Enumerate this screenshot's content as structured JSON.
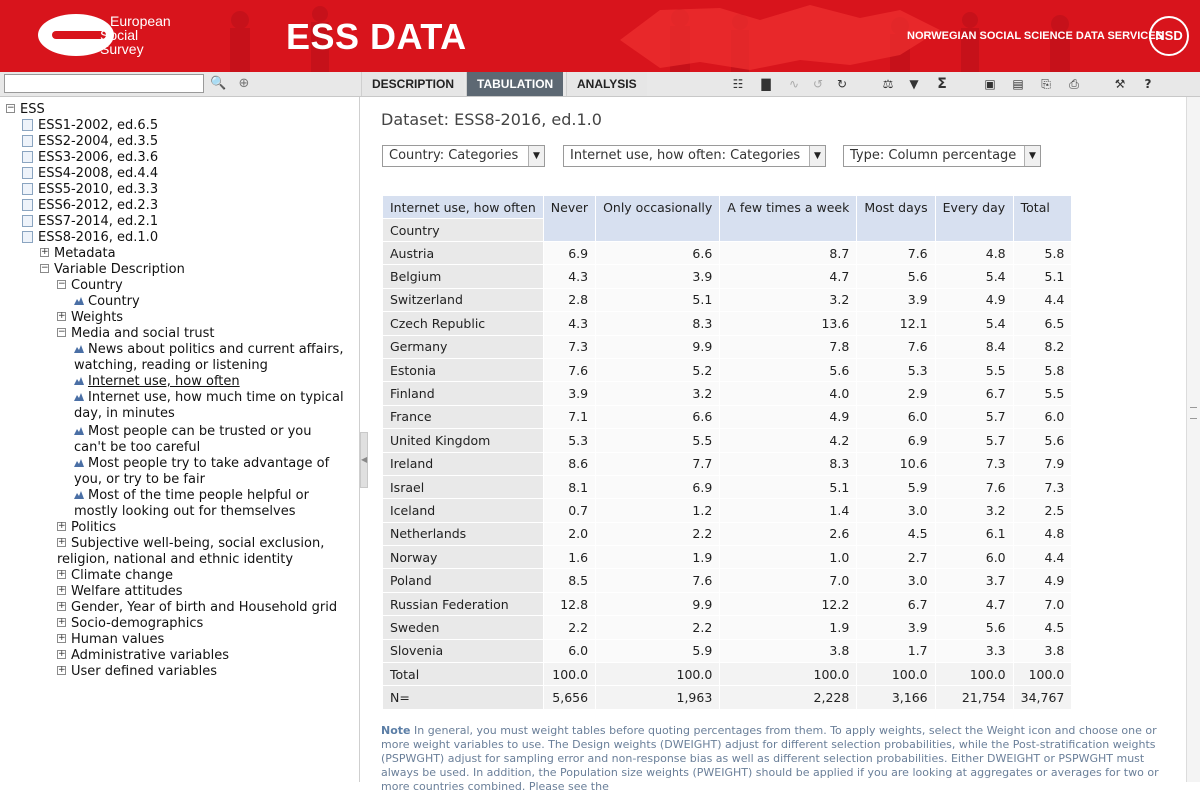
{
  "header": {
    "logo_text": [
      "European",
      "Social",
      "Survey"
    ],
    "brand": "ESS DATA",
    "org_label": "NORWEGIAN SOCIAL SCIENCE DATA SERVICES",
    "org_badge": "NSD",
    "accent_color": "#d8141c"
  },
  "search": {
    "value": "",
    "placeholder": ""
  },
  "tabs": [
    {
      "label": "DESCRIPTION",
      "active": false
    },
    {
      "label": "TABULATION",
      "active": true
    },
    {
      "label": "ANALYSIS",
      "active": false
    }
  ],
  "toolbar_icons": [
    "table-layout-icon",
    "bar-chart-icon",
    "line-chart-icon",
    "undo-icon",
    "refresh-icon",
    "weights-icon",
    "filter-icon",
    "sum-icon",
    "save-icon",
    "export-icon",
    "copy-icon",
    "print-icon",
    "settings-icon",
    "help-icon"
  ],
  "help_glyph": "?",
  "sum_glyph": "Σ",
  "tree": {
    "root": "ESS",
    "rounds": [
      "ESS1-2002, ed.6.5",
      "ESS2-2004, ed.3.5",
      "ESS3-2006, ed.3.6",
      "ESS4-2008, ed.4.4",
      "ESS5-2010, ed.3.3",
      "ESS6-2012, ed.2.3",
      "ESS7-2014, ed.2.1",
      "ESS8-2016, ed.1.0"
    ],
    "metadata": "Metadata",
    "variable_description": "Variable Description",
    "country_group": "Country",
    "country_var": "Country",
    "weights": "Weights",
    "media_group": "Media and social trust",
    "media_vars": [
      "News about politics and current affairs, watching, reading or listening",
      "Internet use, how often",
      "Internet use, how much time on typical day, in minutes",
      "Most people can be trusted or you can't be too careful",
      "Most people try to take advantage of you, or try to be fair",
      "Most of the time people helpful or mostly looking out for themselves"
    ],
    "other_groups": [
      "Politics",
      "Subjective well-being, social exclusion, religion, national and ethnic identity",
      "Climate change",
      "Welfare attitudes",
      "Gender, Year of birth and Household grid",
      "Socio-demographics",
      "Human values",
      "Administrative variables",
      "User defined variables"
    ]
  },
  "main": {
    "dataset_title": "Dataset: ESS8-2016, ed.1.0",
    "dropdowns": [
      "Country: Categories",
      "Internet use, how often: Categories",
      "Type: Column percentage"
    ],
    "table": {
      "row_var": "Country",
      "col_var": "Internet use, how often",
      "columns": [
        "Never",
        "Only occasionally",
        "A few times a week",
        "Most days",
        "Every day",
        "Total"
      ],
      "rows": [
        {
          "label": "Austria",
          "values": [
            "6.9",
            "6.6",
            "8.7",
            "7.6",
            "4.8",
            "5.8"
          ]
        },
        {
          "label": "Belgium",
          "values": [
            "4.3",
            "3.9",
            "4.7",
            "5.6",
            "5.4",
            "5.1"
          ]
        },
        {
          "label": "Switzerland",
          "values": [
            "2.8",
            "5.1",
            "3.2",
            "3.9",
            "4.9",
            "4.4"
          ]
        },
        {
          "label": "Czech Republic",
          "values": [
            "4.3",
            "8.3",
            "13.6",
            "12.1",
            "5.4",
            "6.5"
          ]
        },
        {
          "label": "Germany",
          "values": [
            "7.3",
            "9.9",
            "7.8",
            "7.6",
            "8.4",
            "8.2"
          ]
        },
        {
          "label": "Estonia",
          "values": [
            "7.6",
            "5.2",
            "5.6",
            "5.3",
            "5.5",
            "5.8"
          ]
        },
        {
          "label": "Finland",
          "values": [
            "3.9",
            "3.2",
            "4.0",
            "2.9",
            "6.7",
            "5.5"
          ]
        },
        {
          "label": "France",
          "values": [
            "7.1",
            "6.6",
            "4.9",
            "6.0",
            "5.7",
            "6.0"
          ]
        },
        {
          "label": "United Kingdom",
          "values": [
            "5.3",
            "5.5",
            "4.2",
            "6.9",
            "5.7",
            "5.6"
          ]
        },
        {
          "label": "Ireland",
          "values": [
            "8.6",
            "7.7",
            "8.3",
            "10.6",
            "7.3",
            "7.9"
          ]
        },
        {
          "label": "Israel",
          "values": [
            "8.1",
            "6.9",
            "5.1",
            "5.9",
            "7.6",
            "7.3"
          ]
        },
        {
          "label": "Iceland",
          "values": [
            "0.7",
            "1.2",
            "1.4",
            "3.0",
            "3.2",
            "2.5"
          ]
        },
        {
          "label": "Netherlands",
          "values": [
            "2.0",
            "2.2",
            "2.6",
            "4.5",
            "6.1",
            "4.8"
          ]
        },
        {
          "label": "Norway",
          "values": [
            "1.6",
            "1.9",
            "1.0",
            "2.7",
            "6.0",
            "4.4"
          ]
        },
        {
          "label": "Poland",
          "values": [
            "8.5",
            "7.6",
            "7.0",
            "3.0",
            "3.7",
            "4.9"
          ]
        },
        {
          "label": "Russian Federation",
          "values": [
            "12.8",
            "9.9",
            "12.2",
            "6.7",
            "4.7",
            "7.0"
          ]
        },
        {
          "label": "Sweden",
          "values": [
            "2.2",
            "2.2",
            "1.9",
            "3.9",
            "5.6",
            "4.5"
          ]
        },
        {
          "label": "Slovenia",
          "values": [
            "6.0",
            "5.9",
            "3.8",
            "1.7",
            "3.3",
            "3.8"
          ]
        }
      ],
      "total": {
        "label": "Total",
        "values": [
          "100.0",
          "100.0",
          "100.0",
          "100.0",
          "100.0",
          "100.0"
        ]
      },
      "n": {
        "label": "N=",
        "values": [
          "5,656",
          "1,963",
          "2,228",
          "3,166",
          "21,754",
          "34,767"
        ]
      }
    },
    "note_label": "Note",
    "note_text": "In general, you must weight tables before quoting percentages from them. To apply weights, select the Weight icon and choose one or more weight variables to use. The Design weights (DWEIGHT) adjust for different selection probabilities, while the Post-stratification weights (PSPWGHT) adjust for sampling error and non-response bias as well as different selection probabilities. Either DWEIGHT or PSPWGHT must always be used. In addition, the Population size weights (PWEIGHT) should be applied if you are looking at aggregates or averages for two or more countries combined. Please see the"
  }
}
